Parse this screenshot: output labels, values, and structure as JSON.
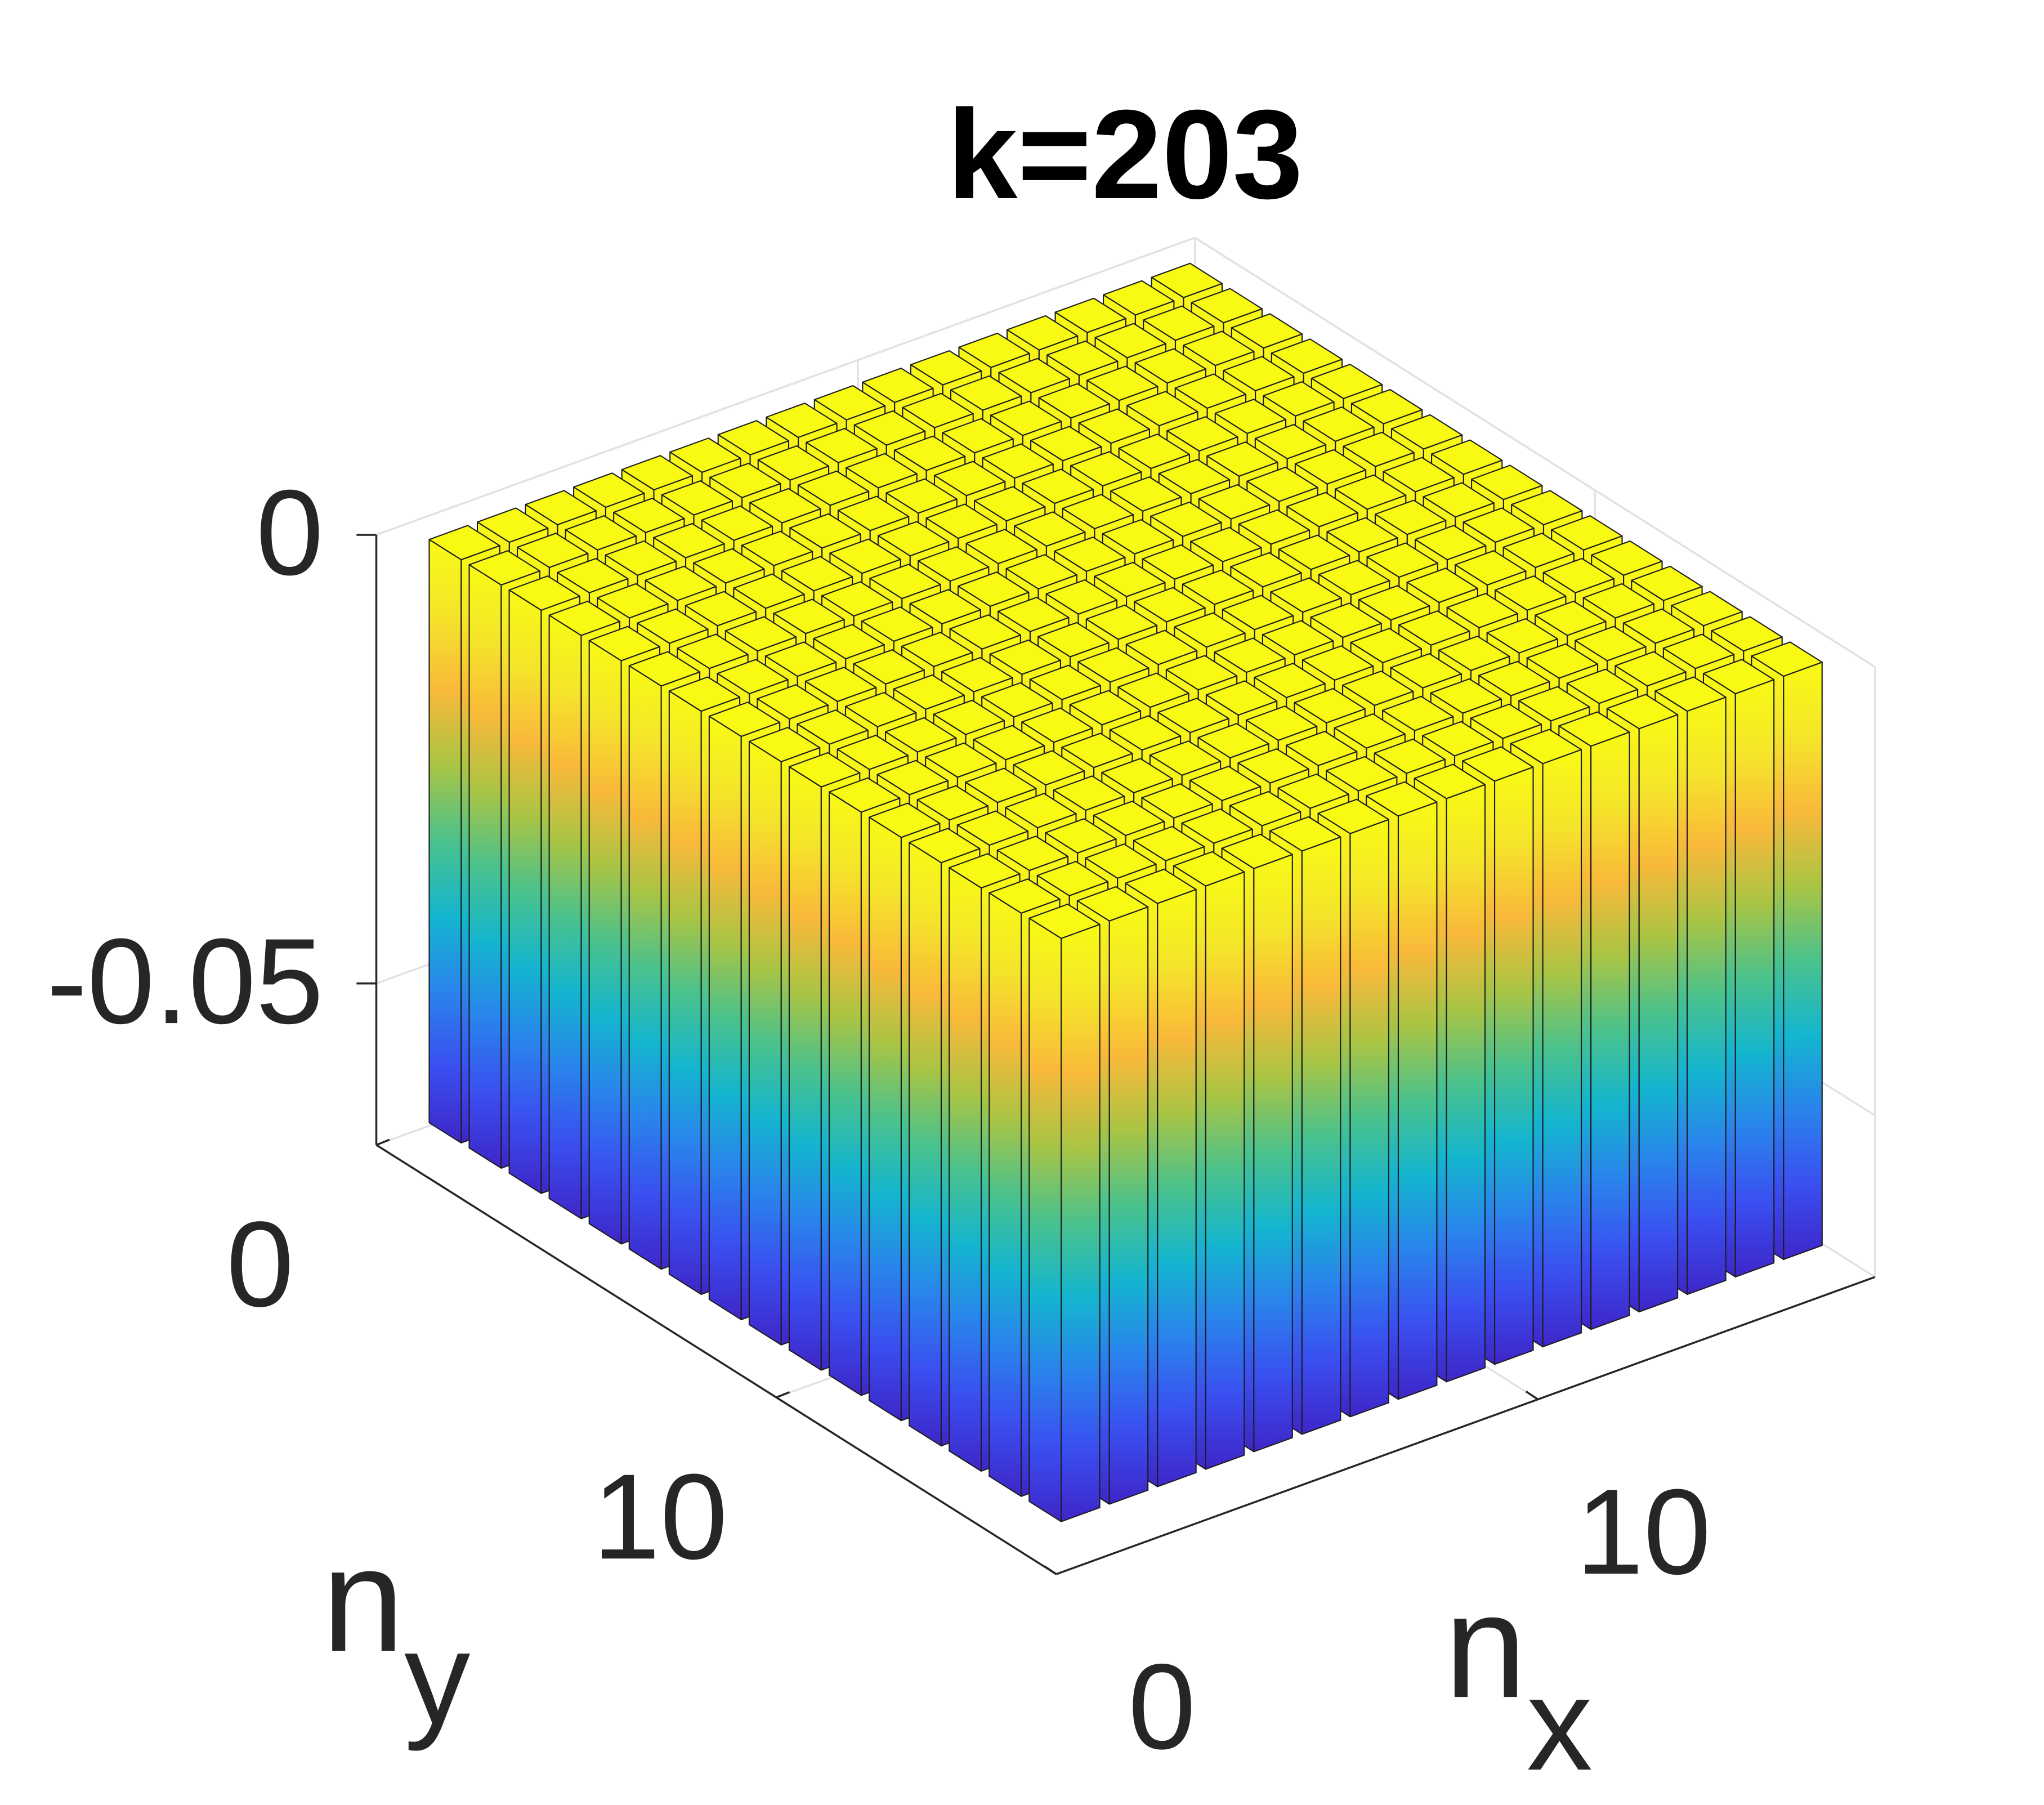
{
  "chart_data": {
    "type": "bar3",
    "title": "k=203",
    "xlabel": "n",
    "xlabel_sub": "x",
    "ylabel": "n",
    "ylabel_sub": "y",
    "xlim": [
      0,
      17
    ],
    "ylim": [
      0,
      17
    ],
    "zlim": [
      -0.068,
      0
    ],
    "xticks": [
      0,
      10
    ],
    "yticks": [
      0,
      10
    ],
    "zticks": [
      -0.05,
      0
    ],
    "grid": true,
    "colormap": [
      "#3e26c8",
      "#3a4ff0",
      "#2a83ec",
      "#14b5cf",
      "#4ac28c",
      "#a9c444",
      "#f9b93a",
      "#f5e52a",
      "#f8fa14"
    ],
    "values": [
      [
        -0.065,
        -0.065,
        -0.065,
        -0.065,
        -0.065,
        -0.065,
        -0.065,
        -0.065,
        -0.065,
        -0.065,
        -0.065,
        -0.065,
        -0.065,
        -0.065,
        -0.065,
        -0.065
      ],
      [
        -0.065,
        -0.065,
        -0.065,
        -0.065,
        -0.065,
        -0.065,
        -0.065,
        -0.065,
        -0.065,
        -0.065,
        -0.065,
        -0.065,
        -0.065,
        -0.065,
        -0.065,
        -0.065
      ],
      [
        -0.065,
        -0.065,
        -0.065,
        -0.065,
        -0.065,
        -0.065,
        -0.065,
        -0.065,
        -0.065,
        -0.065,
        -0.065,
        -0.065,
        -0.065,
        -0.065,
        -0.065,
        -0.065
      ],
      [
        -0.065,
        -0.065,
        -0.065,
        -0.065,
        -0.065,
        -0.065,
        -0.065,
        -0.065,
        -0.065,
        -0.065,
        -0.065,
        -0.065,
        -0.065,
        -0.065,
        -0.065,
        -0.065
      ],
      [
        -0.065,
        -0.065,
        -0.065,
        -0.065,
        -0.065,
        -0.065,
        -0.065,
        -0.065,
        -0.065,
        -0.065,
        -0.065,
        -0.065,
        -0.065,
        -0.065,
        -0.065,
        -0.065
      ],
      [
        -0.065,
        -0.065,
        -0.065,
        -0.065,
        -0.065,
        -0.065,
        -0.065,
        -0.065,
        -0.065,
        -0.065,
        -0.065,
        -0.065,
        -0.065,
        -0.065,
        -0.065,
        -0.065
      ],
      [
        -0.065,
        -0.065,
        -0.065,
        -0.065,
        -0.065,
        -0.065,
        -0.065,
        -0.065,
        -0.065,
        -0.065,
        -0.065,
        -0.065,
        -0.065,
        -0.065,
        -0.065,
        -0.065
      ],
      [
        -0.065,
        -0.065,
        -0.065,
        -0.065,
        -0.065,
        -0.065,
        -0.065,
        -0.065,
        -0.065,
        -0.065,
        -0.065,
        -0.065,
        -0.065,
        -0.065,
        -0.065,
        -0.065
      ],
      [
        -0.065,
        -0.065,
        -0.065,
        -0.065,
        -0.065,
        -0.065,
        -0.065,
        -0.065,
        -0.065,
        -0.065,
        -0.065,
        -0.065,
        -0.065,
        -0.065,
        -0.065,
        -0.065
      ],
      [
        -0.065,
        -0.065,
        -0.065,
        -0.065,
        -0.065,
        -0.065,
        -0.065,
        -0.065,
        -0.065,
        -0.065,
        -0.065,
        -0.065,
        -0.065,
        -0.065,
        -0.065,
        -0.065
      ],
      [
        -0.065,
        -0.065,
        -0.065,
        -0.065,
        -0.065,
        -0.065,
        -0.065,
        -0.065,
        -0.065,
        -0.065,
        -0.065,
        -0.065,
        -0.065,
        -0.065,
        -0.065,
        -0.065
      ],
      [
        -0.065,
        -0.065,
        -0.065,
        -0.065,
        -0.065,
        -0.065,
        -0.065,
        -0.065,
        -0.065,
        -0.065,
        -0.065,
        -0.065,
        -0.065,
        -0.065,
        -0.065,
        -0.065
      ],
      [
        -0.065,
        -0.065,
        -0.065,
        -0.065,
        -0.065,
        -0.065,
        -0.065,
        -0.065,
        -0.065,
        -0.065,
        -0.065,
        -0.065,
        -0.065,
        -0.065,
        -0.065,
        -0.065
      ],
      [
        -0.065,
        -0.065,
        -0.065,
        -0.065,
        -0.065,
        -0.065,
        -0.065,
        -0.065,
        -0.065,
        -0.065,
        -0.065,
        -0.065,
        -0.065,
        -0.065,
        -0.065,
        -0.065
      ],
      [
        -0.065,
        -0.065,
        -0.065,
        -0.065,
        -0.065,
        -0.065,
        -0.065,
        -0.065,
        -0.065,
        -0.065,
        -0.065,
        -0.065,
        -0.065,
        -0.065,
        -0.065,
        -0.065
      ],
      [
        -0.065,
        -0.065,
        -0.065,
        -0.065,
        -0.065,
        -0.065,
        -0.065,
        -0.065,
        -0.065,
        -0.065,
        -0.065,
        -0.065,
        -0.065,
        -0.065,
        -0.065,
        -0.065
      ]
    ]
  }
}
